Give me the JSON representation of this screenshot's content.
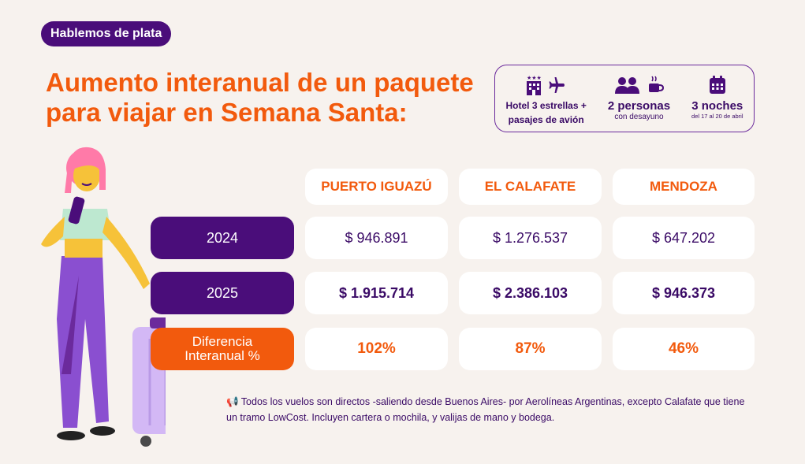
{
  "tag": "Hablemos de plata",
  "title": "Aumento interanual de un paquete para viajar en Semana Santa:",
  "info": {
    "hotel_line1": "Hotel 3 estrellas +",
    "hotel_line2": "pasajes de avión",
    "people_main": "2 personas",
    "people_sub": "con desayuno",
    "nights_main": "3 noches",
    "nights_sub": "del 17 al 20 de abril"
  },
  "table": {
    "columns": [
      "PUERTO IGUAZÚ",
      "EL CALAFATE",
      "MENDOZA"
    ],
    "rows": [
      {
        "label": "2024",
        "values": [
          "$ 946.891",
          "$ 1.276.537",
          "$ 647.202"
        ]
      },
      {
        "label": "2025",
        "values": [
          "$ 1.915.714",
          "$ 2.386.103",
          "$ 946.373"
        ]
      },
      {
        "label_line1": "Diferencia",
        "label_line2": "Interanual %",
        "values": [
          "102%",
          "87%",
          "46%"
        ]
      }
    ]
  },
  "note": "📢 Todos los vuelos son directos -saliendo desde Buenos Aires- por Aerolíneas Argentinas, excepto Calafate que tiene un tramo LowCost. Incluyen cartera o mochila, y valijas de mano y bodega.",
  "colors": {
    "orange": "#f25a0d",
    "purple": "#4a0d7a",
    "background": "#f7f2ee"
  }
}
